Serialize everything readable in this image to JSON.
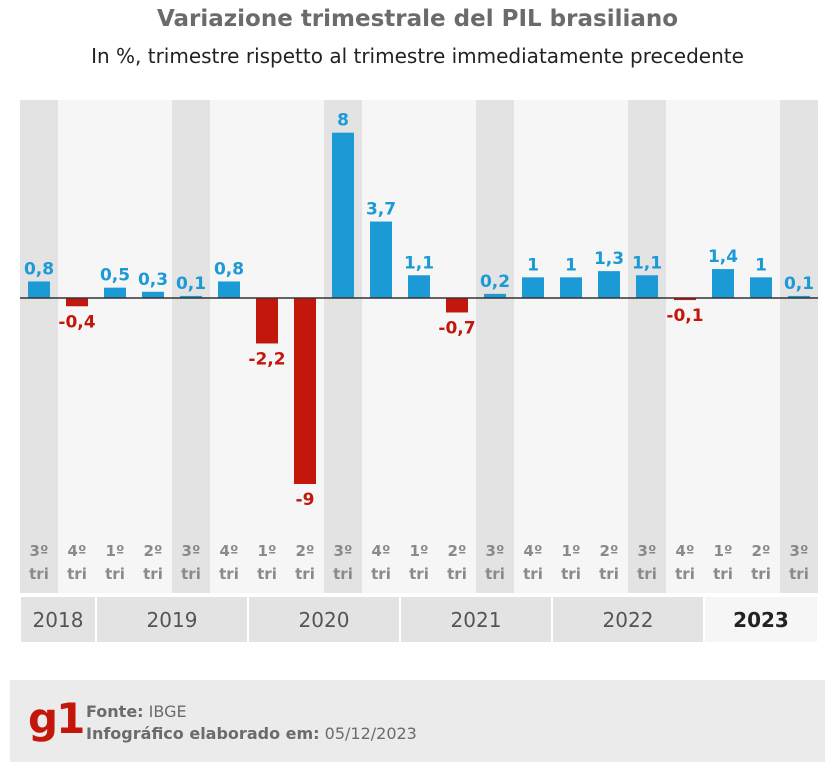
{
  "chart_data": {
    "type": "bar",
    "title": "Variazione trimestrale del PIL brasiliano",
    "subtitle": "In %, trimestre rispetto al trimestre immediatamente precedente",
    "categories": [
      "3º tri",
      "4º tri",
      "1º tri",
      "2º tri",
      "3º tri",
      "4º tri",
      "1º tri",
      "2º tri",
      "3º tri",
      "4º tri",
      "1º tri",
      "2º tri",
      "3º tri",
      "4º tri",
      "1º tri",
      "2º tri",
      "3º tri",
      "4º tri",
      "1º tri",
      "2º tri",
      "3º tri"
    ],
    "quarter_lines": [
      {
        "q": "3º",
        "t": "tri"
      },
      {
        "q": "4º",
        "t": "tri"
      },
      {
        "q": "1º",
        "t": "tri"
      },
      {
        "q": "2º",
        "t": "tri"
      },
      {
        "q": "3º",
        "t": "tri"
      },
      {
        "q": "4º",
        "t": "tri"
      },
      {
        "q": "1º",
        "t": "tri"
      },
      {
        "q": "2º",
        "t": "tri"
      },
      {
        "q": "3º",
        "t": "tri"
      },
      {
        "q": "4º",
        "t": "tri"
      },
      {
        "q": "1º",
        "t": "tri"
      },
      {
        "q": "2º",
        "t": "tri"
      },
      {
        "q": "3º",
        "t": "tri"
      },
      {
        "q": "4º",
        "t": "tri"
      },
      {
        "q": "1º",
        "t": "tri"
      },
      {
        "q": "2º",
        "t": "tri"
      },
      {
        "q": "3º",
        "t": "tri"
      },
      {
        "q": "4º",
        "t": "tri"
      },
      {
        "q": "1º",
        "t": "tri"
      },
      {
        "q": "2º",
        "t": "tri"
      },
      {
        "q": "3º",
        "t": "tri"
      }
    ],
    "values": [
      0.8,
      -0.4,
      0.5,
      0.3,
      0.1,
      0.8,
      -2.2,
      -9,
      8,
      3.7,
      1.1,
      -0.7,
      0.2,
      1,
      1,
      1.3,
      1.1,
      -0.1,
      1.4,
      1,
      0.1
    ],
    "value_labels": [
      "0,8",
      "-0,4",
      "0,5",
      "0,3",
      "0,1",
      "0,8",
      "-2,2",
      "-9",
      "8",
      "3,7",
      "1,1",
      "-0,7",
      "0,2",
      "1",
      "1",
      "1,3",
      "1,1",
      "-0,1",
      "1,4",
      "1",
      "0,1"
    ],
    "years": [
      {
        "label": "2018",
        "span": 2
      },
      {
        "label": "2019",
        "span": 4
      },
      {
        "label": "2020",
        "span": 4
      },
      {
        "label": "2021",
        "span": 4
      },
      {
        "label": "2022",
        "span": 4
      },
      {
        "label": "2023",
        "span": 3
      }
    ],
    "ylim": [
      -9,
      8
    ],
    "colors": {
      "positive": "#1c9ad6",
      "negative": "#c4170c",
      "shaded": "#e3e3e3",
      "light": "#f6f6f6",
      "axis": "#333333"
    }
  },
  "footer": {
    "logo": "g1",
    "source_label": "Fonte:",
    "source_value": "IBGE",
    "made_label": "Infográfico elaborado em:",
    "made_value": "05/12/2023"
  }
}
